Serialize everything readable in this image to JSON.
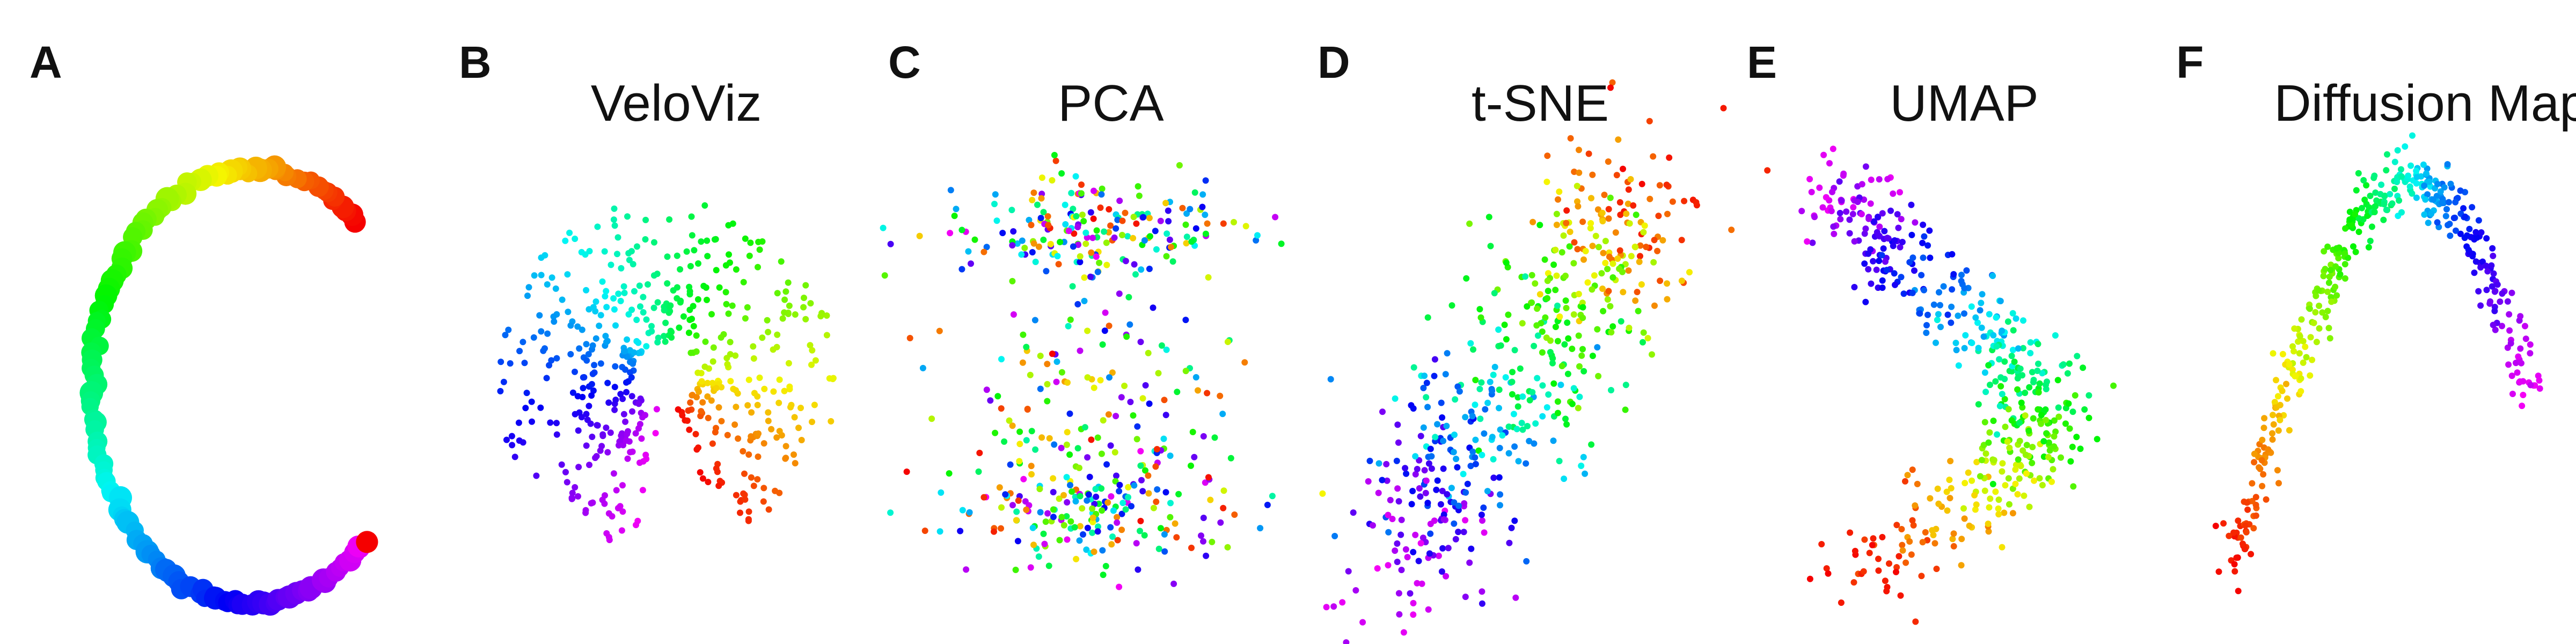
{
  "figure": {
    "panels": [
      {
        "letter": "A",
        "title": ""
      },
      {
        "letter": "B",
        "title": "VeloViz"
      },
      {
        "letter": "C",
        "title": "PCA"
      },
      {
        "letter": "D",
        "title": "t-SNE"
      },
      {
        "letter": "E",
        "title": "UMAP"
      },
      {
        "letter": "F",
        "title": "Diffusion Map"
      }
    ]
  },
  "chart_data": [
    {
      "type": "scatter",
      "panel": "A",
      "title": "",
      "layout": "ring-arc",
      "color_scale": "rainbow-cyclic",
      "encoding": "cell cycle phase",
      "n_points": 130,
      "arc_start_deg": 50,
      "arc_end_deg": 315,
      "grid": false,
      "axes": false
    },
    {
      "type": "scatter",
      "panel": "B",
      "title": "VeloViz",
      "layout": "spiral-disk",
      "color_scale": "rainbow-cyclic",
      "encoding": "cell cycle phase",
      "n_points": 520,
      "grid": false,
      "axes": false
    },
    {
      "type": "scatter",
      "panel": "C",
      "title": "PCA",
      "layout": "two-bands",
      "color_scale": "rainbow-cyclic",
      "encoding": "cell cycle phase",
      "n_points": 520,
      "grid": false,
      "axes": false
    },
    {
      "type": "scatter",
      "panel": "D",
      "title": "t-SNE",
      "layout": "diagonal-band",
      "color_scale": "rainbow-cyclic",
      "encoding": "cell cycle phase",
      "n_points": 520,
      "grid": false,
      "axes": false
    },
    {
      "type": "scatter",
      "panel": "E",
      "title": "UMAP",
      "layout": "s-curve",
      "color_scale": "rainbow-cyclic",
      "encoding": "cell cycle phase",
      "n_points": 480,
      "grid": false,
      "axes": false
    },
    {
      "type": "scatter",
      "panel": "F",
      "title": "Diffusion Map",
      "layout": "arch",
      "color_scale": "rainbow-cyclic",
      "encoding": "cell cycle phase",
      "n_points": 420,
      "grid": false,
      "axes": false
    }
  ]
}
